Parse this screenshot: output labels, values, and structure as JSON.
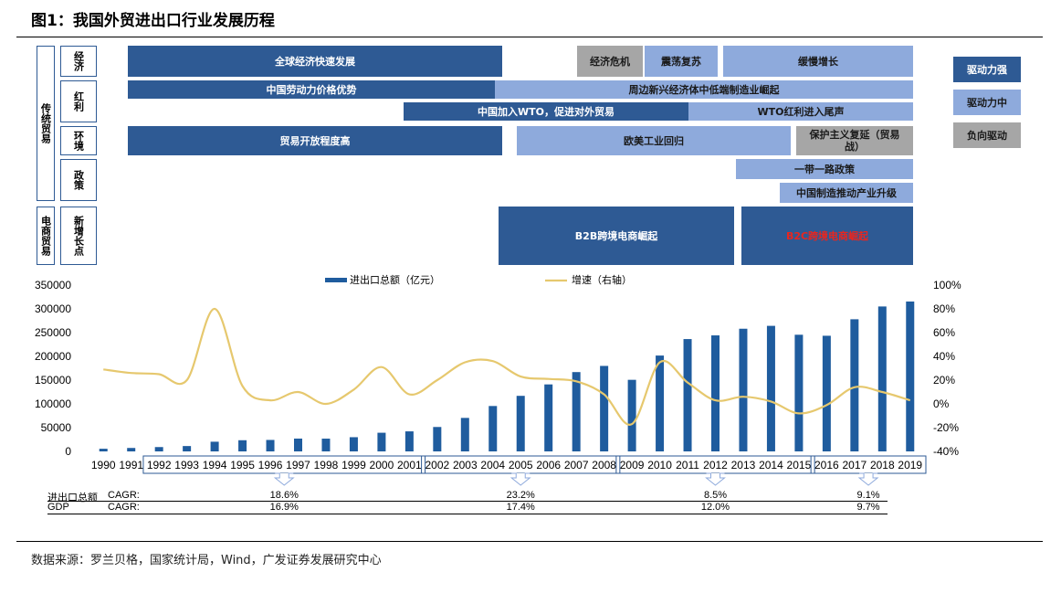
{
  "title": "图1：我国外贸进出口行业发展历程",
  "source": "数据来源：罗兰贝格，国家统计局，Wind，广发证券发展研究中心",
  "left_groups": {
    "traditional": "传统贸易",
    "ecommerce": "电商贸易"
  },
  "row_labels": {
    "economy": "经济",
    "dividend": "红利",
    "environment": "环境",
    "policy": "政策",
    "growth": "新增长点"
  },
  "bands": {
    "global_growth": "全球经济快速发展",
    "crisis": "经济危机",
    "recovery": "震荡复苏",
    "slow_growth": "缓慢增长",
    "labor_cost": "中国劳动力价格优势",
    "neighbors": "周边新兴经济体中低端制造业崛起",
    "wto": "中国加入WTO，促进对外贸易",
    "wto_end": "WTO红利进入尾声",
    "openness": "贸易开放程度高",
    "reshoring": "欧美工业回归",
    "protectionism": "保护主义复延（贸易战）",
    "belt_road": "一带一路政策",
    "upgrade": "中国制造推动产业升级",
    "b2b": "B2B跨境电商崛起",
    "b2c": "B2C跨境电商崛起"
  },
  "legend_boxes": {
    "strong": "驱动力强",
    "medium": "驱动力中",
    "negative": "负向驱动"
  },
  "colors": {
    "dark_blue": "#2e5a94",
    "light_blue": "#8eaadc",
    "grey": "#a6a6a6",
    "bar": "#1f5c9e",
    "line": "#e6c86e",
    "b2c_text": "#e8261f"
  },
  "chart_data": {
    "type": "bar",
    "title": "",
    "xlabel": "",
    "ylabel": "",
    "ylim": [
      0,
      350000
    ],
    "y2lim": [
      -40,
      100
    ],
    "y_ticks": [
      "350000",
      "300000",
      "250000",
      "200000",
      "150000",
      "100000",
      "50000",
      "0"
    ],
    "y2_ticks": [
      "100%",
      "80%",
      "60%",
      "40%",
      "20%",
      "0%",
      "-20%",
      "-40%"
    ],
    "categories": [
      "1990",
      "1991",
      "1992",
      "1993",
      "1994",
      "1995",
      "1996",
      "1997",
      "1998",
      "1999",
      "2000",
      "2001",
      "2002",
      "2003",
      "2004",
      "2005",
      "2006",
      "2007",
      "2008",
      "2009",
      "2010",
      "2011",
      "2012",
      "2013",
      "2014",
      "2015",
      "2016",
      "2017",
      "2018",
      "2019"
    ],
    "series": [
      {
        "name": "进出口总额（亿元）",
        "type": "bar",
        "values": [
          5560,
          7226,
          9120,
          11271,
          20382,
          23500,
          24134,
          26967,
          26850,
          29896,
          39273,
          42184,
          51378,
          70484,
          95539,
          116922,
          140975,
          166924,
          179922,
          150648,
          201722,
          236402,
          244160,
          258169,
          264242,
          245503,
          243386,
          278099,
          305010,
          315446
        ]
      },
      {
        "name": "增速（右轴）",
        "type": "line",
        "axis": "right",
        "values": [
          29,
          26,
          25,
          20,
          80,
          15,
          3,
          10,
          0,
          12,
          31,
          8,
          20,
          35,
          36,
          23,
          21,
          19,
          8,
          -17,
          35,
          18,
          3,
          6,
          2,
          -8,
          -1,
          14,
          10,
          3
        ]
      }
    ],
    "legend_position": "top"
  },
  "cagr": {
    "row1_label": "进出口总额",
    "row2_label": "GDP",
    "cagr_word": "CAGR:",
    "export_values": [
      "18.6%",
      "23.2%",
      "8.5%",
      "9.1%"
    ],
    "gdp_values": [
      "16.9%",
      "17.4%",
      "12.0%",
      "9.7%"
    ]
  }
}
